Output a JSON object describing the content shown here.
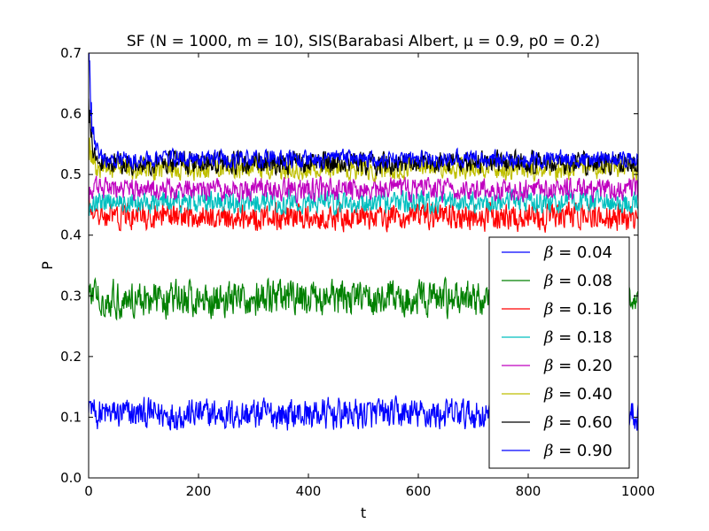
{
  "chart_data": {
    "type": "line",
    "title": "SF (N = 1000, m = 10), SIS(Barabasi Albert, μ = 0.9, p0 = 0.2)",
    "xlabel": "t",
    "ylabel": "P",
    "xlim": [
      0,
      1000
    ],
    "ylim": [
      0.0,
      0.7
    ],
    "x_ticks": [
      "0",
      "200",
      "400",
      "600",
      "800",
      "1000"
    ],
    "y_ticks": [
      "0.0",
      "0.1",
      "0.2",
      "0.3",
      "0.4",
      "0.5",
      "0.6",
      "0.7"
    ],
    "grid": false,
    "legend_position": "lower-right",
    "series": [
      {
        "name": "β = 0.04",
        "legend_prefix": "β",
        "legend_value": "= 0.04",
        "color": "#0000ff",
        "start": 0.13,
        "steady_mean": 0.105,
        "noise_amplitude": 0.035
      },
      {
        "name": "β = 0.08",
        "legend_prefix": "β",
        "legend_value": "= 0.08",
        "color": "#008000",
        "start": 0.31,
        "steady_mean": 0.295,
        "noise_amplitude": 0.04
      },
      {
        "name": "β = 0.16",
        "legend_prefix": "β",
        "legend_value": "= 0.16",
        "color": "#ff0000",
        "start": 0.45,
        "steady_mean": 0.43,
        "noise_amplitude": 0.03
      },
      {
        "name": "β = 0.18",
        "legend_prefix": "β",
        "legend_value": "= 0.18",
        "color": "#00bfbf",
        "start": 0.45,
        "steady_mean": 0.455,
        "noise_amplitude": 0.025
      },
      {
        "name": "β = 0.20",
        "legend_prefix": "β",
        "legend_value": "= 0.20",
        "color": "#bf00bf",
        "start": 0.47,
        "steady_mean": 0.475,
        "noise_amplitude": 0.025
      },
      {
        "name": "β = 0.40",
        "legend_prefix": "β",
        "legend_value": "= 0.40",
        "color": "#bfbf00",
        "start": 0.55,
        "steady_mean": 0.51,
        "noise_amplitude": 0.025
      },
      {
        "name": "β = 0.60",
        "legend_prefix": "β",
        "legend_value": "= 0.60",
        "color": "#000000",
        "start": 0.6,
        "steady_mean": 0.52,
        "noise_amplitude": 0.025
      },
      {
        "name": "β = 0.90",
        "legend_prefix": "β",
        "legend_value": "= 0.90",
        "color": "#0000ff",
        "start": 0.7,
        "steady_mean": 0.525,
        "noise_amplitude": 0.02
      }
    ]
  }
}
